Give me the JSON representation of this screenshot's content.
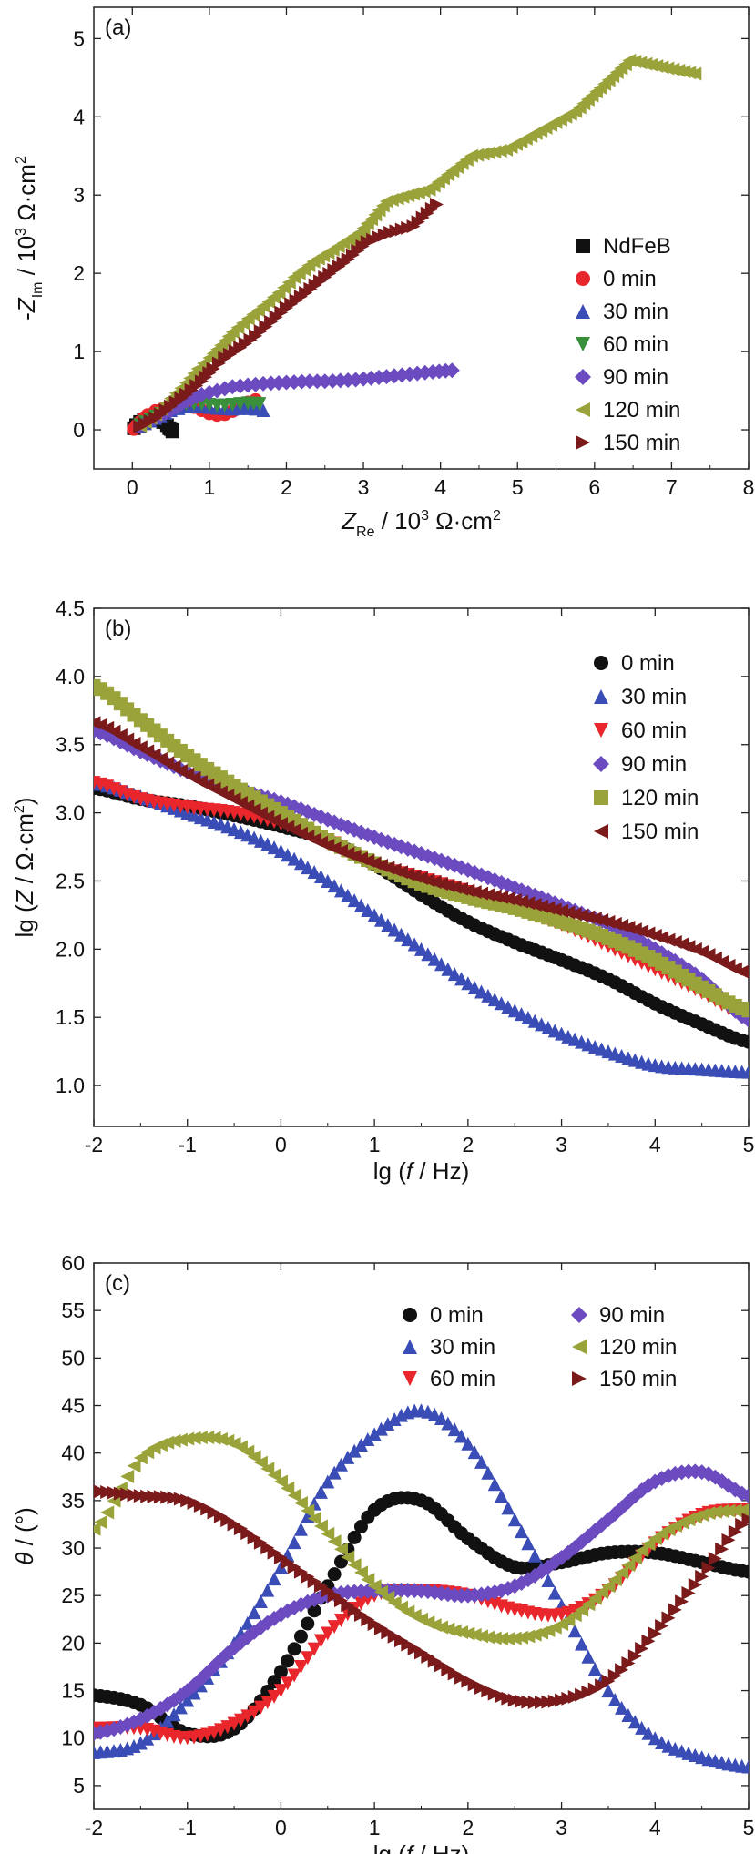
{
  "figure": {
    "marker_colors": {
      "NdFeB": "#111111",
      "0 min": "#e8262b",
      "0 min (b,c)": "#111111",
      "30 min": "#3a4cb6",
      "60 min green": "#3a8f3a",
      "60 min red": "#e8262b",
      "90 min": "#6b4bbf",
      "120 min": "#9aa33a",
      "150 min": "#7a1a1a"
    }
  },
  "chart_data": [
    {
      "type": "scatter",
      "panel_label": "(a)",
      "xlabel": "Z_Re / 10^3 Ω·cm^2",
      "ylabel": "-Z_Im / 10^3 Ω·cm^2",
      "xlim": [
        -0.5,
        8
      ],
      "ylim": [
        -0.5,
        5.4
      ],
      "x_ticks": [
        "0",
        "1",
        "2",
        "3",
        "4",
        "5",
        "6",
        "7",
        "8"
      ],
      "y_ticks": [
        "0",
        "1",
        "2",
        "3",
        "4",
        "5"
      ],
      "legend_position": "right",
      "series": [
        {
          "name": "NdFeB",
          "marker": "square",
          "color": "#111111",
          "points": [
            [
              0.02,
              0.02
            ],
            [
              0.05,
              0.06
            ],
            [
              0.1,
              0.1
            ],
            [
              0.15,
              0.13
            ],
            [
              0.2,
              0.14
            ],
            [
              0.25,
              0.14
            ],
            [
              0.3,
              0.13
            ],
            [
              0.35,
              0.12
            ],
            [
              0.4,
              0.1
            ],
            [
              0.45,
              0.06
            ],
            [
              0.48,
              0.02
            ],
            [
              0.5,
              0.01
            ],
            [
              0.52,
              0.0
            ],
            [
              0.52,
              -0.02
            ]
          ]
        },
        {
          "name": "0 min",
          "marker": "circle",
          "color": "#e8262b",
          "points": [
            [
              0.02,
              0.01
            ],
            [
              0.05,
              0.05
            ],
            [
              0.1,
              0.1
            ],
            [
              0.15,
              0.15
            ],
            [
              0.2,
              0.19
            ],
            [
              0.3,
              0.24
            ],
            [
              0.4,
              0.27
            ],
            [
              0.5,
              0.3
            ],
            [
              0.6,
              0.31
            ],
            [
              0.7,
              0.31
            ],
            [
              0.8,
              0.29
            ],
            [
              0.9,
              0.25
            ],
            [
              1.0,
              0.21
            ],
            [
              1.1,
              0.19
            ],
            [
              1.2,
              0.2
            ],
            [
              1.3,
              0.24
            ],
            [
              1.4,
              0.3
            ],
            [
              1.5,
              0.35
            ],
            [
              1.6,
              0.38
            ]
          ]
        },
        {
          "name": "30 min",
          "marker": "triangle-up",
          "color": "#3a4cb6",
          "points": [
            [
              0.1,
              0.05
            ],
            [
              0.3,
              0.15
            ],
            [
              0.5,
              0.25
            ],
            [
              0.7,
              0.3
            ],
            [
              0.9,
              0.3
            ],
            [
              1.1,
              0.28
            ],
            [
              1.3,
              0.27
            ],
            [
              1.45,
              0.28
            ],
            [
              1.6,
              0.27
            ],
            [
              1.7,
              0.25
            ]
          ]
        },
        {
          "name": "60 min",
          "marker": "triangle-down",
          "color": "#3a8f3a",
          "points": [
            [
              0.1,
              0.06
            ],
            [
              0.3,
              0.17
            ],
            [
              0.5,
              0.27
            ],
            [
              0.7,
              0.33
            ],
            [
              0.9,
              0.33
            ],
            [
              1.1,
              0.31
            ],
            [
              1.3,
              0.32
            ],
            [
              1.5,
              0.34
            ],
            [
              1.65,
              0.33
            ]
          ]
        },
        {
          "name": "90 min",
          "marker": "diamond",
          "color": "#6b4bbf",
          "points": [
            [
              0.1,
              0.05
            ],
            [
              0.3,
              0.15
            ],
            [
              0.5,
              0.25
            ],
            [
              0.7,
              0.37
            ],
            [
              0.9,
              0.45
            ],
            [
              1.1,
              0.5
            ],
            [
              1.3,
              0.55
            ],
            [
              1.5,
              0.57
            ],
            [
              1.7,
              0.59
            ],
            [
              1.9,
              0.6
            ],
            [
              2.1,
              0.61
            ],
            [
              2.3,
              0.62
            ],
            [
              2.5,
              0.62
            ],
            [
              2.7,
              0.63
            ],
            [
              2.9,
              0.64
            ],
            [
              3.1,
              0.66
            ],
            [
              3.3,
              0.68
            ],
            [
              3.5,
              0.7
            ],
            [
              3.7,
              0.72
            ],
            [
              3.9,
              0.74
            ],
            [
              4.15,
              0.76
            ]
          ]
        },
        {
          "name": "120 min",
          "marker": "triangle-left",
          "color": "#9aa33a",
          "points": [
            [
              0.1,
              0.05
            ],
            [
              0.3,
              0.2
            ],
            [
              0.5,
              0.4
            ],
            [
              0.7,
              0.6
            ],
            [
              0.85,
              0.78
            ],
            [
              1.0,
              0.92
            ],
            [
              1.15,
              1.08
            ],
            [
              1.3,
              1.25
            ],
            [
              1.5,
              1.42
            ],
            [
              1.7,
              1.58
            ],
            [
              1.9,
              1.75
            ],
            [
              2.1,
              1.95
            ],
            [
              2.35,
              2.15
            ],
            [
              2.6,
              2.3
            ],
            [
              2.95,
              2.52
            ],
            [
              3.3,
              2.92
            ],
            [
              3.85,
              3.07
            ],
            [
              4.4,
              3.5
            ],
            [
              4.85,
              3.58
            ],
            [
              5.75,
              4.07
            ],
            [
              6.45,
              4.72
            ],
            [
              7.3,
              4.55
            ]
          ]
        },
        {
          "name": "150 min",
          "marker": "triangle-right",
          "color": "#7a1a1a",
          "points": [
            [
              0.1,
              0.04
            ],
            [
              0.3,
              0.15
            ],
            [
              0.5,
              0.3
            ],
            [
              0.7,
              0.45
            ],
            [
              0.9,
              0.62
            ],
            [
              1.05,
              0.78
            ],
            [
              1.2,
              0.92
            ],
            [
              1.4,
              1.05
            ],
            [
              1.6,
              1.2
            ],
            [
              1.8,
              1.38
            ],
            [
              2.0,
              1.56
            ],
            [
              2.25,
              1.75
            ],
            [
              2.5,
              1.95
            ],
            [
              2.8,
              2.18
            ],
            [
              3.05,
              2.4
            ],
            [
              3.35,
              2.52
            ],
            [
              3.65,
              2.6
            ],
            [
              3.95,
              2.88
            ]
          ]
        }
      ]
    },
    {
      "type": "scatter",
      "panel_label": "(b)",
      "xlabel": "lg (f / Hz)",
      "ylabel": "lg (Z / Ω·cm^2)",
      "xlim": [
        -2,
        5
      ],
      "ylim": [
        0.7,
        4.5
      ],
      "x_ticks": [
        "-2",
        "-1",
        "0",
        "1",
        "2",
        "3",
        "4",
        "5"
      ],
      "y_ticks": [
        "1.0",
        "1.5",
        "2.0",
        "2.5",
        "3.0",
        "3.5",
        "4.0",
        "4.5"
      ],
      "legend_position": "top-right",
      "x": [
        -2,
        -1.5,
        -1,
        -0.5,
        0,
        0.5,
        1,
        1.5,
        2,
        2.5,
        3,
        3.5,
        4,
        4.5,
        5
      ],
      "series": [
        {
          "name": "0 min",
          "marker": "circle",
          "color": "#111111",
          "values": [
            3.18,
            3.1,
            3.05,
            2.98,
            2.9,
            2.8,
            2.62,
            2.4,
            2.2,
            2.05,
            1.92,
            1.78,
            1.6,
            1.45,
            1.32
          ]
        },
        {
          "name": "30 min",
          "marker": "triangle-up",
          "color": "#3a4cb6",
          "values": [
            3.22,
            3.12,
            3.0,
            2.88,
            2.72,
            2.5,
            2.25,
            2.0,
            1.75,
            1.55,
            1.38,
            1.25,
            1.15,
            1.12,
            1.1
          ]
        },
        {
          "name": "60 min",
          "marker": "triangle-down",
          "color": "#e8262b",
          "values": [
            3.22,
            3.1,
            3.04,
            3.0,
            2.92,
            2.8,
            2.62,
            2.52,
            2.42,
            2.3,
            2.18,
            2.02,
            1.85,
            1.68,
            1.5
          ]
        },
        {
          "name": "90 min",
          "marker": "diamond",
          "color": "#6b4bbf",
          "values": [
            3.6,
            3.45,
            3.3,
            3.18,
            3.08,
            2.95,
            2.82,
            2.7,
            2.58,
            2.45,
            2.32,
            2.18,
            2.0,
            1.78,
            1.48
          ]
        },
        {
          "name": "120 min",
          "marker": "square",
          "color": "#9aa33a",
          "values": [
            3.93,
            3.68,
            3.42,
            3.2,
            3.0,
            2.8,
            2.63,
            2.48,
            2.38,
            2.3,
            2.2,
            2.08,
            1.92,
            1.72,
            1.55
          ]
        },
        {
          "name": "150 min",
          "marker": "triangle-left",
          "color": "#7a1a1a",
          "values": [
            3.66,
            3.48,
            3.28,
            3.1,
            2.92,
            2.76,
            2.63,
            2.52,
            2.43,
            2.36,
            2.28,
            2.2,
            2.1,
            1.98,
            1.82
          ]
        }
      ]
    },
    {
      "type": "scatter",
      "panel_label": "(c)",
      "xlabel": "lg (f / Hz)",
      "ylabel": "θ / (°)",
      "xlim": [
        -2,
        5
      ],
      "ylim": [
        2.5,
        60
      ],
      "x_ticks": [
        "-2",
        "-1",
        "0",
        "1",
        "2",
        "3",
        "4",
        "5"
      ],
      "y_ticks": [
        "5",
        "10",
        "15",
        "20",
        "25",
        "30",
        "35",
        "40",
        "45",
        "50",
        "55",
        "60"
      ],
      "legend_position": "top-right",
      "x": [
        -2,
        -1.5,
        -1,
        -0.5,
        0,
        0.5,
        1,
        1.5,
        2,
        2.5,
        3,
        3.5,
        4,
        4.5,
        5
      ],
      "series": [
        {
          "name": "0 min",
          "marker": "circle",
          "color": "#111111",
          "values": [
            14.5,
            13.5,
            10.5,
            11.0,
            17.0,
            26.0,
            34.0,
            35.0,
            31.0,
            28.0,
            28.5,
            29.5,
            29.5,
            28.5,
            27.5
          ]
        },
        {
          "name": "30 min",
          "marker": "triangle-up",
          "color": "#3a4cb6",
          "values": [
            8.5,
            9.5,
            14.0,
            20.0,
            28.0,
            37.0,
            42.0,
            44.5,
            41.0,
            33.0,
            24.0,
            15.0,
            10.0,
            8.0,
            7.0
          ]
        },
        {
          "name": "60 min",
          "marker": "triangle-down",
          "color": "#e8262b",
          "values": [
            11.0,
            11.0,
            10.0,
            11.5,
            15.0,
            21.0,
            25.0,
            25.5,
            25.0,
            23.5,
            23.0,
            25.5,
            30.5,
            33.5,
            34.0
          ]
        },
        {
          "name": "90 min",
          "marker": "diamond",
          "color": "#6b4bbf",
          "values": [
            10.5,
            12.0,
            15.0,
            19.5,
            23.0,
            25.0,
            25.5,
            25.5,
            25.0,
            26.0,
            29.0,
            33.0,
            37.0,
            38.0,
            35.5
          ]
        },
        {
          "name": "120 min",
          "marker": "triangle-left",
          "color": "#9aa33a",
          "values": [
            32.0,
            39.5,
            41.5,
            41.0,
            37.0,
            31.5,
            26.0,
            22.5,
            21.0,
            20.5,
            22.0,
            26.0,
            31.0,
            33.5,
            34.0
          ]
        },
        {
          "name": "150 min",
          "marker": "triangle-right",
          "color": "#7a1a1a",
          "values": [
            36.0,
            35.5,
            35.0,
            32.5,
            29.0,
            25.5,
            22.0,
            19.0,
            16.0,
            14.0,
            14.0,
            16.0,
            21.0,
            27.0,
            33.0
          ]
        }
      ]
    }
  ]
}
